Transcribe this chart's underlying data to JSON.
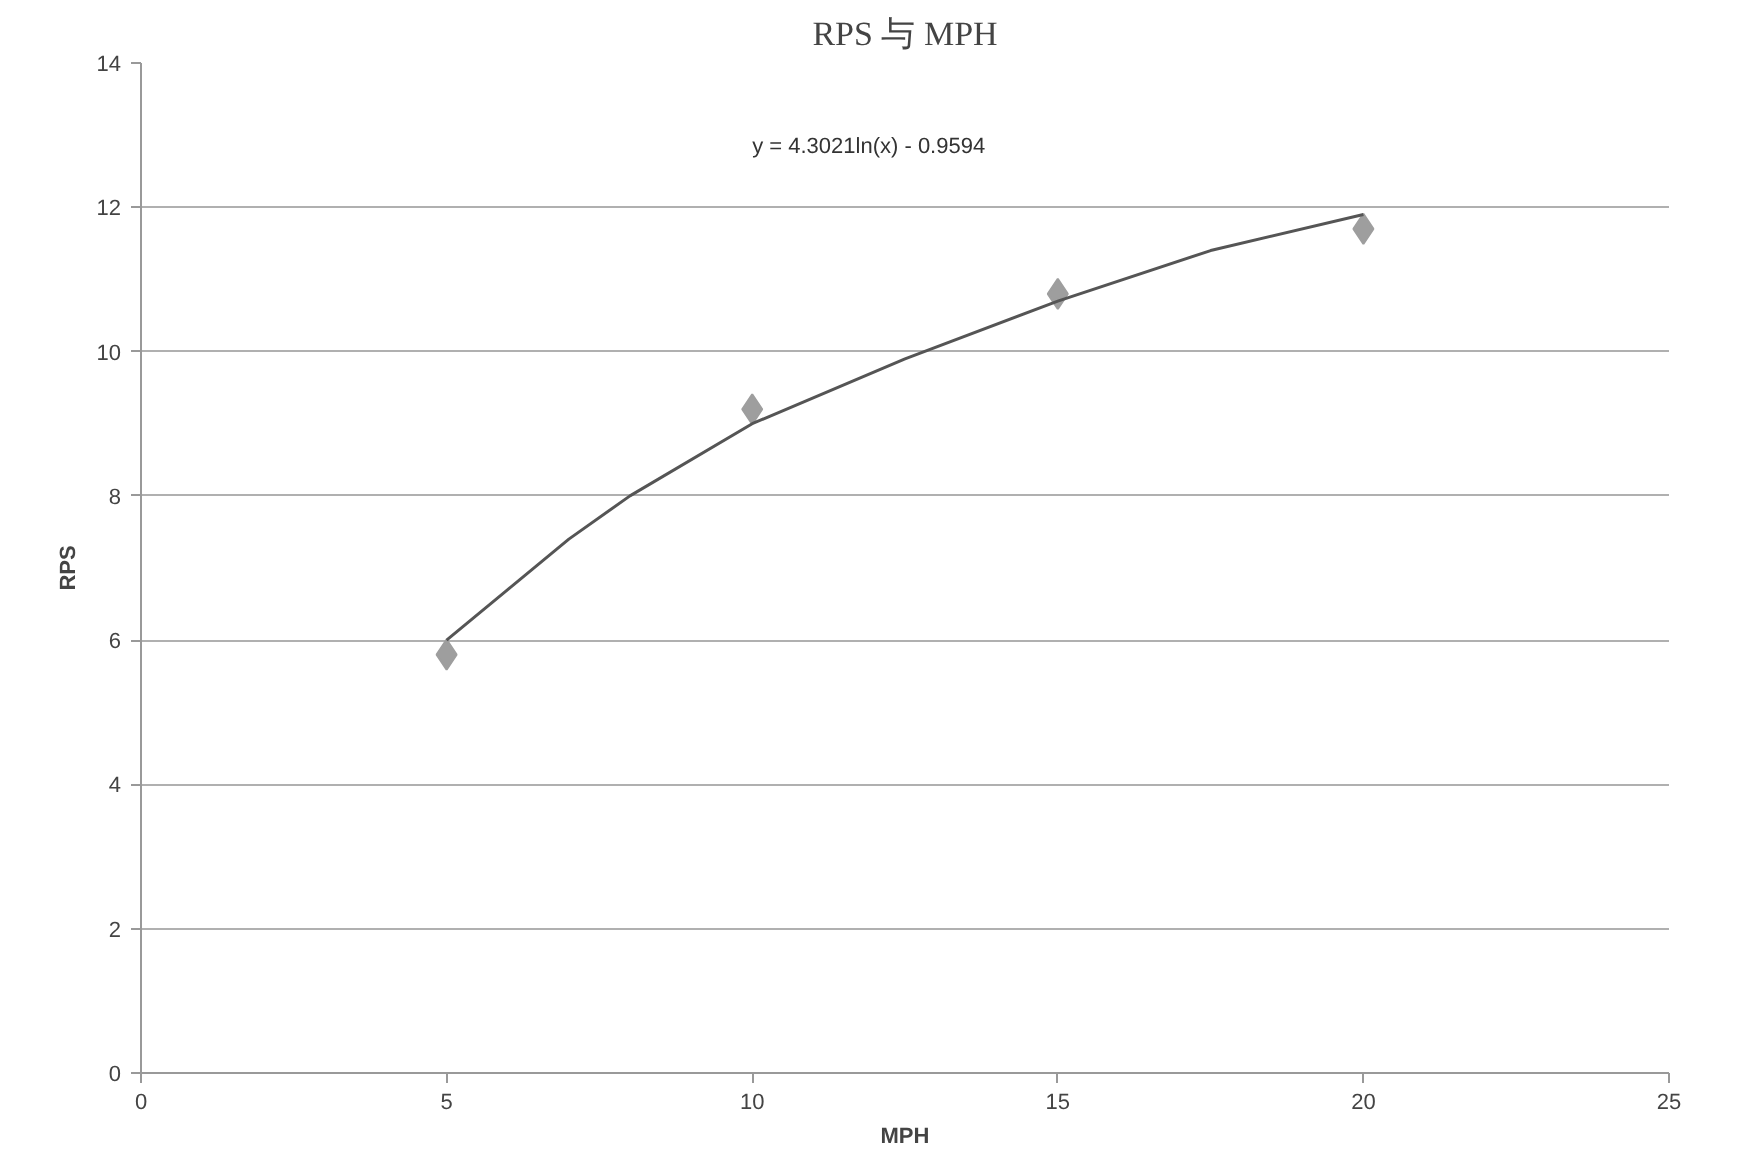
{
  "chart_data": {
    "type": "scatter",
    "title": "RPS 与 MPH",
    "xlabel": "MPH",
    "ylabel": "RPS",
    "x": [
      5,
      10,
      15,
      20
    ],
    "series": [
      {
        "color": "#9e9e9e",
        "values": [
          5.8,
          9.2,
          10.8,
          11.7
        ],
        "marker": "diamond"
      },
      {
        "type": "line",
        "color": "#555555",
        "x": [
          5,
          6,
          7,
          8,
          10,
          12.5,
          15,
          17.5,
          20
        ],
        "values": [
          6.0,
          6.7,
          7.4,
          8.0,
          9.0,
          9.9,
          10.7,
          11.4,
          11.9
        ],
        "marker": "none",
        "line_style": "solid"
      }
    ],
    "annotations": [
      "y = 4.3021ln(x) - 0.9594"
    ],
    "xlim": [
      0,
      25
    ],
    "xticks": [
      0,
      5,
      10,
      15,
      20,
      25
    ],
    "ylim": [
      0,
      14
    ],
    "yticks": [
      0,
      2,
      4,
      6,
      8,
      10,
      12,
      14
    ],
    "grid": "y"
  }
}
